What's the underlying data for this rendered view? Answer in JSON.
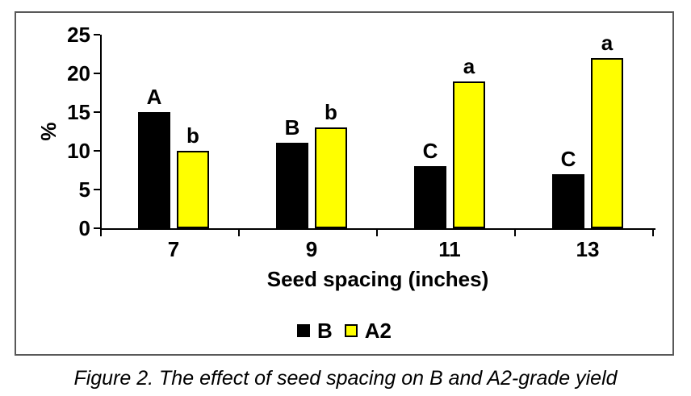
{
  "figure": {
    "caption": "Figure 2. The effect of seed spacing on B and A2-grade yield"
  },
  "chart_data": {
    "type": "bar",
    "title": "",
    "xlabel": "Seed spacing (inches)",
    "ylabel": "%",
    "ylim": [
      0,
      25
    ],
    "yticks": [
      0,
      5,
      10,
      15,
      20,
      25
    ],
    "grid": false,
    "categories": [
      "7",
      "9",
      "11",
      "13"
    ],
    "series": [
      {
        "name": "B",
        "color": "#000000",
        "values": [
          15,
          11,
          8,
          7
        ],
        "bar_labels": [
          "A",
          "B",
          "C",
          "C"
        ]
      },
      {
        "name": "A2",
        "color": "#ffff00",
        "values": [
          10,
          13,
          19,
          22
        ],
        "bar_labels": [
          "b",
          "b",
          "a",
          "a"
        ]
      }
    ],
    "legend": {
      "position": "bottom",
      "entries": [
        "B",
        "A2"
      ]
    }
  },
  "colors": {
    "background": "#ffffff",
    "frame_border": "#595959",
    "axis": "#000000",
    "series_b_fill": "#000000",
    "series_a2_fill": "#ffff00",
    "series_a2_border": "#000000",
    "text": "#000000"
  }
}
